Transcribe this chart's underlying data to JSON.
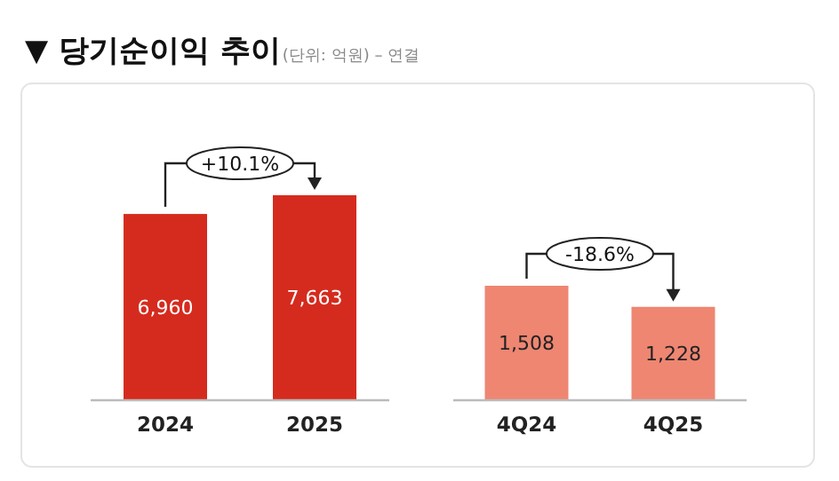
{
  "chart_data": [
    {
      "type": "bar",
      "title": "▼ 당기순이익 추이",
      "subtitle": "(단위: 억원) – 연결",
      "categories": [
        "2024",
        "2025"
      ],
      "values": [
        6960,
        7663
      ],
      "color": "#d52b1e",
      "value_labels": [
        "6,960",
        "7,663"
      ],
      "annotations": [
        "+10.1%"
      ]
    },
    {
      "type": "bar",
      "categories": [
        "4Q24",
        "4Q25"
      ],
      "values": [
        1508,
        1228
      ],
      "color": "#ee8672",
      "value_labels": [
        "1,508",
        "1,228"
      ],
      "annotations": [
        "-18.6%"
      ]
    }
  ]
}
